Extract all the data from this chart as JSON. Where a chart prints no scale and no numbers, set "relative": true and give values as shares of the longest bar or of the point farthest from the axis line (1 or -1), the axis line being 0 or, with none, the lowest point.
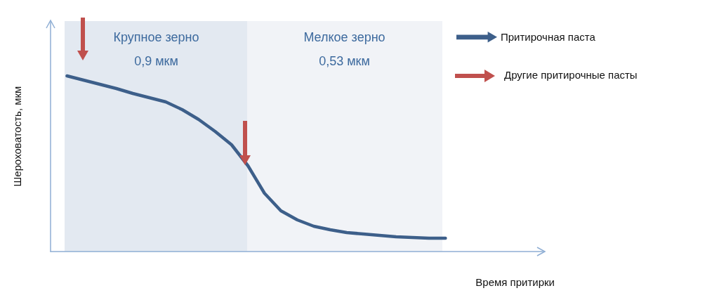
{
  "chart_data": {
    "type": "line",
    "relative": true,
    "xlabel": "Время притирки",
    "ylabel": "Шероховатость, мкм",
    "tick_labels": false,
    "grid": false,
    "legend": "top right",
    "line_style": "solid",
    "categories": [
      null,
      null,
      null,
      null,
      null,
      null,
      null,
      null,
      null,
      null,
      null,
      null,
      null,
      null,
      null,
      null,
      null,
      null,
      null,
      null,
      null,
      null,
      null,
      null,
      null,
      null,
      null,
      null,
      null,
      null,
      null
    ],
    "series": [
      {
        "name": "Притирочная паста",
        "color": "#3d5f8a",
        "values": [
          null,
          1.0,
          0.976,
          0.952,
          0.928,
          0.9,
          0.876,
          0.852,
          0.808,
          0.752,
          0.684,
          0.608,
          0.488,
          0.332,
          0.232,
          0.18,
          0.144,
          0.124,
          0.108,
          0.1,
          0.092,
          0.084,
          0.08,
          0.076,
          0.076,
          null,
          null,
          null,
          null,
          null,
          null
        ]
      }
    ],
    "annotations": [
      "Крупное зерно\n0,9 мкм",
      "Мелкое зерно\n0,53 мкм",
      "Другие притирочные пасты"
    ]
  }
}
